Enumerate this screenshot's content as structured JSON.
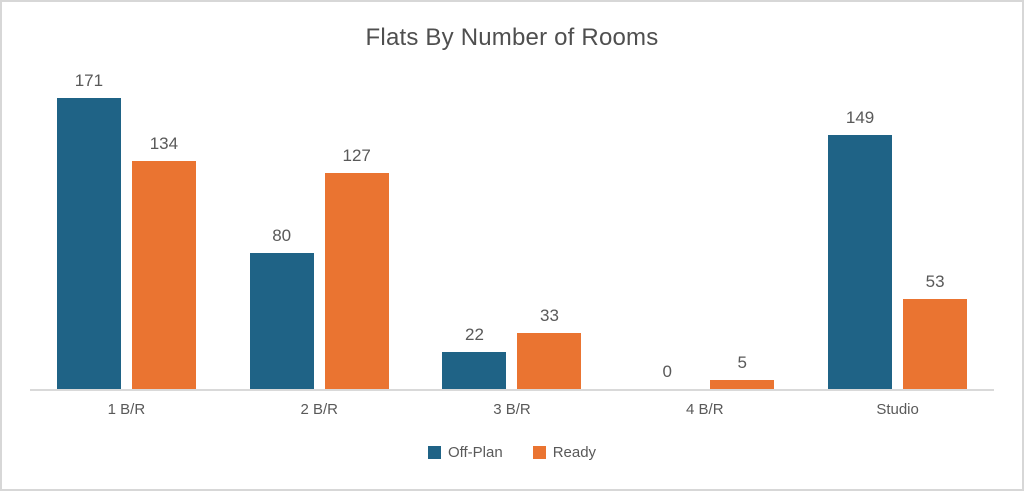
{
  "chart_data": {
    "type": "bar",
    "title": "Flats By Number of Rooms",
    "categories": [
      "1 B/R",
      "2 B/R",
      "3 B/R",
      "4 B/R",
      "Studio"
    ],
    "series": [
      {
        "name": "Off-Plan",
        "color": "#1f6386",
        "values": [
          171,
          80,
          22,
          0,
          149
        ]
      },
      {
        "name": "Ready",
        "color": "#ea7431",
        "values": [
          134,
          127,
          33,
          5,
          53
        ]
      }
    ],
    "data_labels": true,
    "grid": false,
    "y_axis_visible": false,
    "ylim": [
      0,
      180
    ],
    "legend_position": "bottom",
    "xlabel": "",
    "ylabel": ""
  },
  "style": {
    "title_color": "#4f4f4f",
    "label_color": "#595959",
    "axis_color": "#d9d9d9",
    "frame_border_color": "#d7d7d7",
    "background": "#ffffff"
  }
}
